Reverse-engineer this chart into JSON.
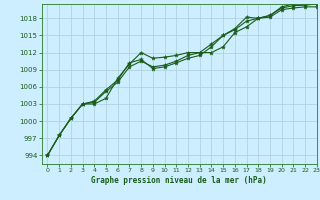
{
  "title": "Graphe pression niveau de la mer (hPa)",
  "bg_color": "#cceeff",
  "plot_bg_color": "#cceeff",
  "grid_color": "#aaccdd",
  "line_color": "#1a5c1a",
  "marker_color": "#1a5c1a",
  "xlim": [
    -0.5,
    23
  ],
  "ylim": [
    992.5,
    1020.5
  ],
  "yticks": [
    994,
    997,
    1000,
    1003,
    1006,
    1009,
    1012,
    1015,
    1018
  ],
  "xticks": [
    0,
    1,
    2,
    3,
    4,
    5,
    6,
    7,
    8,
    9,
    10,
    11,
    12,
    13,
    14,
    15,
    16,
    17,
    18,
    19,
    20,
    21,
    22,
    23
  ],
  "series": [
    [
      994.0,
      997.5,
      1000.5,
      1003.0,
      1003.0,
      1004.0,
      1007.5,
      1010.0,
      1012.0,
      1011.0,
      1011.2,
      1011.5,
      1012.0,
      1012.0,
      1012.0,
      1013.0,
      1015.5,
      1016.5,
      1018.0,
      1018.2,
      1019.5,
      1019.8,
      1020.0,
      1020.0
    ],
    [
      994.0,
      997.5,
      1000.5,
      1003.0,
      1003.3,
      1005.2,
      1006.8,
      1009.5,
      1010.5,
      1009.5,
      1009.8,
      1010.5,
      1011.5,
      1012.0,
      1013.5,
      1015.0,
      1016.0,
      1017.5,
      1018.0,
      1018.5,
      1019.8,
      1020.2,
      1020.3,
      1020.5
    ],
    [
      994.0,
      997.5,
      1000.5,
      1003.0,
      1003.5,
      1005.5,
      1007.2,
      1010.2,
      1010.8,
      1009.2,
      1009.5,
      1010.2,
      1011.0,
      1011.5,
      1013.0,
      1015.0,
      1016.2,
      1018.2,
      1018.0,
      1018.5,
      1020.0,
      1020.5,
      1020.5,
      1020.5
    ]
  ]
}
